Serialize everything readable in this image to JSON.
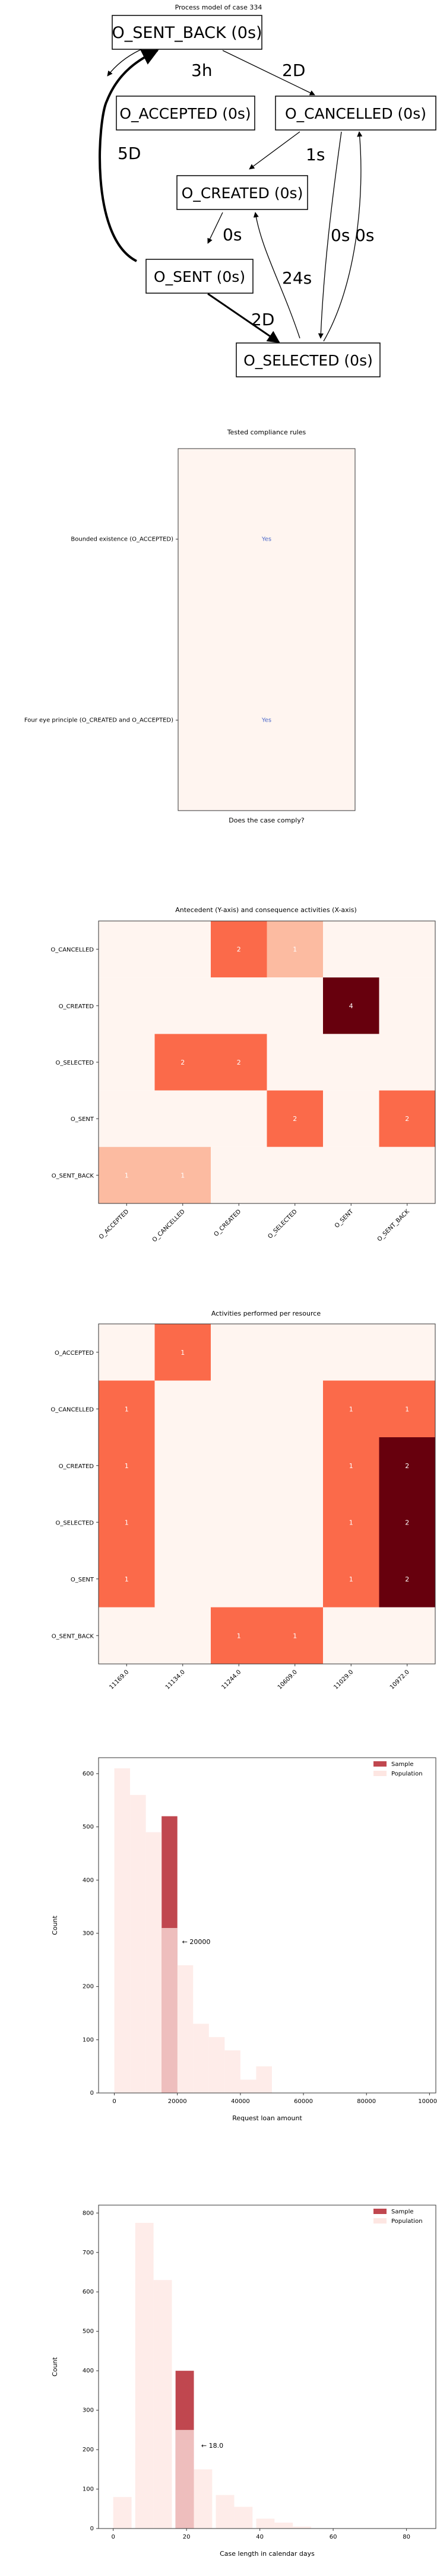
{
  "process_model": {
    "title": "Process model of case 334",
    "nodes": [
      "O_SENT_BACK (0s)",
      "O_ACCEPTED (0s)",
      "O_CANCELLED (0s)",
      "O_CREATED (0s)",
      "O_SENT (0s)",
      "O_SELECTED (0s)"
    ],
    "edges": [
      {
        "from": 0,
        "to": 1,
        "label": "3h"
      },
      {
        "from": 0,
        "to": 2,
        "label": "2D"
      },
      {
        "from": 4,
        "to": 0,
        "label": "5D"
      },
      {
        "from": 2,
        "to": 3,
        "label": "1s"
      },
      {
        "from": 3,
        "to": 4,
        "label": "0s"
      },
      {
        "from": 4,
        "to": 5,
        "label": "2D"
      },
      {
        "from": 5,
        "to": 3,
        "label": "24s"
      },
      {
        "from": 2,
        "to": 5,
        "label": "0s"
      },
      {
        "from": 5,
        "to": 2,
        "label": "0s"
      }
    ]
  },
  "chart_data": [
    {
      "type": "heatmap",
      "title": "Tested compliance rules",
      "xlabel": "Does the case comply?",
      "rows": [
        "Bounded existence (O_ACCEPTED)",
        "Four eye principle (O_CREATED and O_ACCEPTED)"
      ],
      "values": [
        [
          "Yes"
        ],
        [
          "Yes"
        ]
      ],
      "colors": {
        "cell": "#fff5f0",
        "border": "#333333",
        "text": "#4a66c8"
      }
    },
    {
      "type": "heatmap",
      "title": "Antecedent (Y-axis) and consequence activities (X-axis)",
      "rows": [
        "O_CANCELLED",
        "O_CREATED",
        "O_SELECTED",
        "O_SENT",
        "O_SENT_BACK"
      ],
      "columns": [
        "O_ACCEPTED",
        "O_CANCELLED",
        "O_CREATED",
        "O_SELECTED",
        "O_SENT",
        "O_SENT_BACK"
      ],
      "values": [
        [
          0,
          0,
          2,
          1,
          0,
          0
        ],
        [
          0,
          0,
          0,
          0,
          4,
          0
        ],
        [
          0,
          2,
          2,
          0,
          0,
          0
        ],
        [
          0,
          0,
          0,
          2,
          0,
          2
        ],
        [
          1,
          1,
          0,
          0,
          0,
          0
        ]
      ],
      "colors": {
        "zero": "#fff5f0",
        "one": "#fcbba1",
        "two": "#fb6a4a",
        "max": "#67000d"
      }
    },
    {
      "type": "heatmap",
      "title": "Activities performed per resource",
      "rows": [
        "O_ACCEPTED",
        "O_CANCELLED",
        "O_CREATED",
        "O_SELECTED",
        "O_SENT",
        "O_SENT_BACK"
      ],
      "columns": [
        "11169.0",
        "11134.0",
        "11244.0",
        "10609.0",
        "11029.0",
        "10972.0"
      ],
      "values": [
        [
          0,
          1,
          0,
          0,
          0,
          0
        ],
        [
          1,
          0,
          0,
          0,
          1,
          1
        ],
        [
          1,
          0,
          0,
          0,
          1,
          2
        ],
        [
          1,
          0,
          0,
          0,
          1,
          2
        ],
        [
          1,
          0,
          0,
          0,
          1,
          2
        ],
        [
          0,
          0,
          1,
          1,
          0,
          0
        ]
      ],
      "colors": {
        "zero": "#fff5f0",
        "one": "#fb6a4a",
        "max": "#67000d"
      }
    },
    {
      "type": "bar",
      "xlabel": "Request loan amount",
      "ylabel": "Count",
      "xlim": [
        -5000,
        102000
      ],
      "ylim": [
        0,
        630
      ],
      "xticks": [
        0,
        20000,
        40000,
        60000,
        80000,
        100000
      ],
      "yticks": [
        0,
        100,
        200,
        300,
        400,
        500,
        600
      ],
      "bin_width": 5000,
      "legend_position": "top-right",
      "series": [
        {
          "name": "Sample",
          "color": "#c0474f",
          "bins": [
            {
              "x0": 15000,
              "value": 520
            }
          ]
        },
        {
          "name": "Population",
          "color": "#fde6e2",
          "bins": [
            {
              "x0": 0,
              "value": 610
            },
            {
              "x0": 5000,
              "value": 560
            },
            {
              "x0": 10000,
              "value": 490
            },
            {
              "x0": 15000,
              "value": 310
            },
            {
              "x0": 20000,
              "value": 240
            },
            {
              "x0": 25000,
              "value": 130
            },
            {
              "x0": 30000,
              "value": 105
            },
            {
              "x0": 35000,
              "value": 80
            },
            {
              "x0": 40000,
              "value": 25
            },
            {
              "x0": 45000,
              "value": 50
            }
          ]
        }
      ],
      "annotation": "← 20000",
      "annotation_at": {
        "x": 21500,
        "y": 280
      }
    },
    {
      "type": "bar",
      "xlabel": "Case length in calendar days",
      "ylabel": "Count",
      "xlim": [
        -4,
        88
      ],
      "ylim": [
        0,
        820
      ],
      "xticks": [
        0,
        20,
        40,
        60,
        80
      ],
      "yticks": [
        0,
        100,
        200,
        300,
        400,
        500,
        600,
        700,
        800
      ],
      "bin_width": 5,
      "legend_position": "top-right",
      "series": [
        {
          "name": "Sample",
          "color": "#c0474f",
          "bins": [
            {
              "x0": 17,
              "value": 400
            }
          ]
        },
        {
          "name": "Population",
          "color": "#fde6e2",
          "bins": [
            {
              "x0": 0,
              "value": 80
            },
            {
              "x0": 6,
              "value": 775
            },
            {
              "x0": 11,
              "value": 630
            },
            {
              "x0": 17,
              "value": 250
            },
            {
              "x0": 22,
              "value": 150
            },
            {
              "x0": 28,
              "value": 85
            },
            {
              "x0": 33,
              "value": 55
            },
            {
              "x0": 39,
              "value": 25
            },
            {
              "x0": 44,
              "value": 15
            },
            {
              "x0": 49,
              "value": 5
            }
          ]
        }
      ],
      "annotation": "← 18.0",
      "annotation_at": {
        "x": 24,
        "y": 205
      }
    }
  ]
}
